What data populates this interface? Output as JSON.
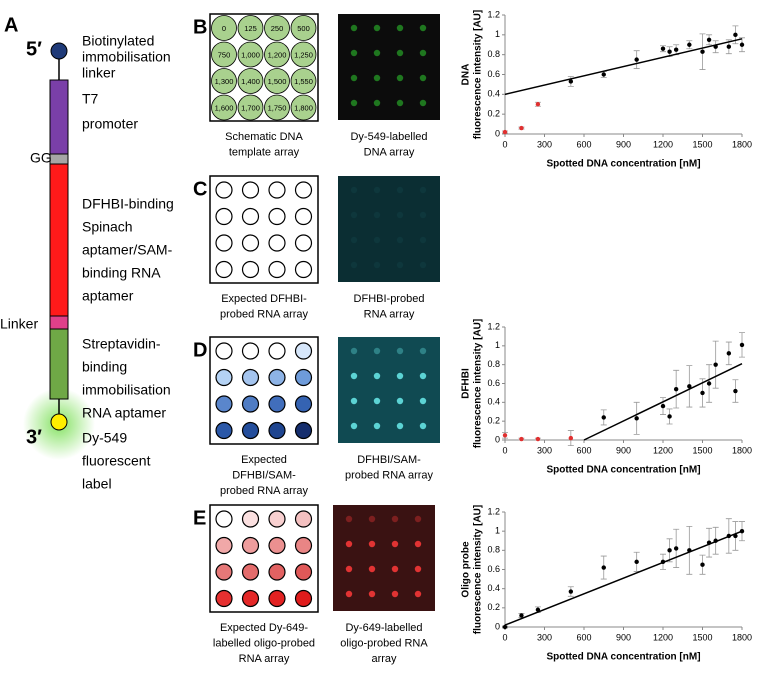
{
  "panels": {
    "A": {
      "letter": "A",
      "top_end": "5′",
      "bottom_end": "3′",
      "gg": "GG",
      "linker": "Linker",
      "labels": [
        [
          "Biotinylated",
          "immobilisation",
          "linker"
        ],
        [
          "T7",
          "promoter"
        ],
        [
          "DFHBI-binding",
          "Spinach",
          "aptamer/SAM-",
          "binding RNA",
          "aptamer"
        ],
        [
          "Streptavidin-",
          "binding",
          "immobilisation",
          "RNA aptamer"
        ],
        [
          "Dy-549",
          "fluorescent",
          "label"
        ]
      ]
    },
    "B": {
      "letter": "B",
      "wells": [
        "0",
        "125",
        "250",
        "500",
        "750",
        "1,000",
        "1,200",
        "1,250",
        "1,300",
        "1,400",
        "1,500",
        "1,550",
        "1,600",
        "1,700",
        "1,750",
        "1,800"
      ],
      "well_color": "#a9d18e",
      "caption_left": [
        "Schematic DNA",
        "template array"
      ],
      "caption_right": [
        "Dy-549-labelled",
        "DNA array"
      ]
    },
    "C": {
      "letter": "C",
      "well_colors": [
        "#ffffff",
        "#ffffff",
        "#ffffff",
        "#ffffff",
        "#ffffff",
        "#ffffff",
        "#ffffff",
        "#ffffff",
        "#ffffff",
        "#ffffff",
        "#ffffff",
        "#ffffff",
        "#ffffff",
        "#ffffff",
        "#ffffff",
        "#ffffff"
      ],
      "caption_left": [
        "Expected DFHBI-",
        "probed RNA array"
      ],
      "caption_right": [
        "DFHBI-probed",
        "RNA array"
      ]
    },
    "D": {
      "letter": "D",
      "well_colors": [
        "#ffffff",
        "#ffffff",
        "#ffffff",
        "#d6e6fa",
        "#b4d2f4",
        "#a4c4ee",
        "#8db3e6",
        "#6e9bda",
        "#5a86cc",
        "#4f7cc4",
        "#416ebc",
        "#3563b2",
        "#2b58a8",
        "#244e9c",
        "#1f4590",
        "#152e6e"
      ],
      "caption_left": [
        "Expected",
        "DFHBI/SAM-",
        "probed RNA array"
      ],
      "caption_right": [
        "DFHBI/SAM-",
        "probed RNA array"
      ]
    },
    "E": {
      "letter": "E",
      "well_colors": [
        "#ffffff",
        "#fbe0e0",
        "#f8d0d0",
        "#f4c0c0",
        "#f0a8a8",
        "#ee9d9d",
        "#eb9090",
        "#e98585",
        "#e67878",
        "#e46c6c",
        "#e26262",
        "#e05858",
        "#e63030",
        "#e42828",
        "#e22222",
        "#e01c1c"
      ],
      "caption_left": [
        "Expected Dy-649-",
        "labelled oligo-probed",
        "RNA array"
      ],
      "caption_right": [
        "Dy-649-labelled",
        "oligo-probed RNA",
        "array"
      ]
    }
  },
  "chart_data": [
    {
      "type": "scatter",
      "ylabel": [
        "DNA",
        "fluorescence intensity [AU]"
      ],
      "xlabel": "Spotted DNA concentration [nM]",
      "xlim": [
        0,
        1800
      ],
      "xticks": [
        0,
        300,
        600,
        900,
        1200,
        1500,
        1800
      ],
      "ylim": [
        0,
        1.2
      ],
      "yticks": [
        0,
        0.2,
        0.4,
        0.6,
        0.8,
        1,
        1.2
      ],
      "series": [
        {
          "color": "#e03030",
          "x": [
            0,
            125,
            250
          ],
          "values": [
            0.02,
            0.06,
            0.3
          ],
          "errors": [
            0.01,
            0.01,
            0.02
          ]
        },
        {
          "color": "#000000",
          "x": [
            500,
            750,
            1000,
            1200,
            1250,
            1300,
            1400,
            1500,
            1550,
            1600,
            1700,
            1750,
            1800
          ],
          "values": [
            0.53,
            0.6,
            0.75,
            0.86,
            0.83,
            0.85,
            0.9,
            0.83,
            0.95,
            0.88,
            0.88,
            1.0,
            0.9
          ],
          "errors": [
            0.05,
            0.03,
            0.09,
            0.03,
            0.05,
            0.05,
            0.04,
            0.18,
            0.05,
            0.06,
            0.07,
            0.09,
            0.07
          ]
        },
        {
          "color": "#000000",
          "line": true,
          "x": [
            0,
            1800
          ],
          "values": [
            0.4,
            0.96
          ]
        }
      ]
    },
    {
      "type": "scatter",
      "ylabel": [
        "DFHBI",
        "fluorescence intensity [AU]"
      ],
      "xlabel": "Spotted DNA concentration [nM]",
      "xlim": [
        0,
        1800
      ],
      "xticks": [
        0,
        300,
        600,
        900,
        1200,
        1500,
        1800
      ],
      "ylim": [
        0,
        1.2
      ],
      "yticks": [
        0,
        0.2,
        0.4,
        0.6,
        0.8,
        1,
        1.2
      ],
      "series": [
        {
          "color": "#e03030",
          "x": [
            0,
            125,
            250,
            500
          ],
          "values": [
            0.05,
            0.01,
            0.01,
            0.02
          ],
          "errors": [
            0.03,
            0.01,
            0.01,
            0.08
          ]
        },
        {
          "color": "#000000",
          "x": [
            750,
            1000,
            1200,
            1250,
            1300,
            1400,
            1500,
            1550,
            1600,
            1700,
            1750,
            1800
          ],
          "values": [
            0.24,
            0.23,
            0.36,
            0.25,
            0.54,
            0.57,
            0.5,
            0.6,
            0.8,
            0.92,
            0.52,
            1.01
          ],
          "errors": [
            0.08,
            0.17,
            0.09,
            0.08,
            0.2,
            0.22,
            0.15,
            0.2,
            0.25,
            0.12,
            0.12,
            0.13
          ]
        },
        {
          "color": "#000000",
          "line": true,
          "x": [
            600,
            1800
          ],
          "values": [
            0,
            0.81
          ]
        }
      ]
    },
    {
      "type": "scatter",
      "ylabel": [
        "Oligo probe",
        "fluorescence intensity [AU]"
      ],
      "xlabel": "Spotted DNA concentration [nM]",
      "xlim": [
        0,
        1800
      ],
      "xticks": [
        0,
        300,
        600,
        900,
        1200,
        1500,
        1800
      ],
      "ylim": [
        0,
        1.2
      ],
      "yticks": [
        0,
        0.2,
        0.4,
        0.6,
        0.8,
        1,
        1.2
      ],
      "series": [
        {
          "color": "#000000",
          "x": [
            0,
            125,
            250,
            500,
            750,
            1000,
            1200,
            1250,
            1300,
            1400,
            1500,
            1550,
            1600,
            1700,
            1750,
            1800
          ],
          "values": [
            0,
            0.12,
            0.18,
            0.37,
            0.62,
            0.68,
            0.68,
            0.8,
            0.82,
            0.8,
            0.65,
            0.88,
            0.9,
            0.95,
            0.95,
            1.0
          ],
          "errors": [
            0.01,
            0.02,
            0.03,
            0.05,
            0.12,
            0.1,
            0.08,
            0.12,
            0.2,
            0.25,
            0.1,
            0.15,
            0.14,
            0.18,
            0.15,
            0.1
          ]
        },
        {
          "color": "#000000",
          "line": true,
          "x": [
            0,
            1800
          ],
          "values": [
            0.02,
            1.0
          ]
        }
      ]
    }
  ]
}
